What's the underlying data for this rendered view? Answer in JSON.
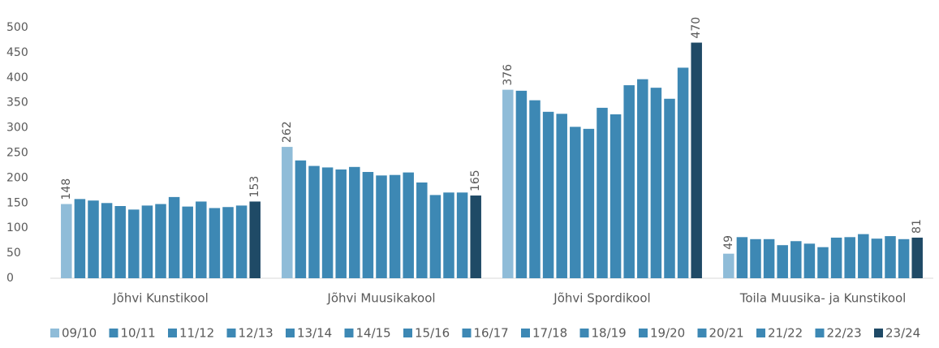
{
  "chart_data": {
    "type": "bar",
    "categories": [
      "Jõhvi Kunstikool",
      "Jõhvi Muusikakool",
      "Jõhvi Spordikool",
      "Toila Muusika- ja Kunstikool"
    ],
    "series": [
      {
        "name": "09/10",
        "color": "#8fbcd8",
        "values": [
          148,
          262,
          376,
          49
        ],
        "show_labels": true
      },
      {
        "name": "10/11",
        "color": "#3d88b4",
        "values": [
          158,
          235,
          374,
          82
        ]
      },
      {
        "name": "11/12",
        "color": "#3d88b4",
        "values": [
          155,
          224,
          355,
          78
        ]
      },
      {
        "name": "12/13",
        "color": "#3d88b4",
        "values": [
          150,
          221,
          332,
          78
        ]
      },
      {
        "name": "13/14",
        "color": "#3d88b4",
        "values": [
          144,
          217,
          328,
          66
        ]
      },
      {
        "name": "14/15",
        "color": "#3d88b4",
        "values": [
          137,
          222,
          302,
          74
        ]
      },
      {
        "name": "15/16",
        "color": "#3d88b4",
        "values": [
          145,
          212,
          298,
          69
        ]
      },
      {
        "name": "16/17",
        "color": "#3d88b4",
        "values": [
          148,
          205,
          340,
          62
        ]
      },
      {
        "name": "17/18",
        "color": "#3d88b4",
        "values": [
          162,
          206,
          327,
          81
        ]
      },
      {
        "name": "18/19",
        "color": "#3d88b4",
        "values": [
          143,
          211,
          385,
          82
        ]
      },
      {
        "name": "19/20",
        "color": "#3d88b4",
        "values": [
          153,
          191,
          397,
          88
        ]
      },
      {
        "name": "20/21",
        "color": "#3d88b4",
        "values": [
          140,
          166,
          380,
          79
        ]
      },
      {
        "name": "21/22",
        "color": "#3d88b4",
        "values": [
          142,
          171,
          358,
          84
        ]
      },
      {
        "name": "22/23",
        "color": "#3d88b4",
        "values": [
          145,
          171,
          420,
          78
        ]
      },
      {
        "name": "23/24",
        "color": "#1f4a66",
        "values": [
          153,
          165,
          470,
          81
        ],
        "show_labels": true
      }
    ],
    "ylim": [
      0,
      500
    ],
    "yticks": [
      0,
      50,
      100,
      150,
      200,
      250,
      300,
      350,
      400,
      450,
      500
    ],
    "grid": false,
    "legend": "bottom"
  }
}
